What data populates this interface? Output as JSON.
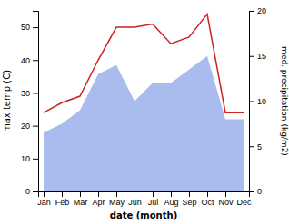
{
  "chart_data": {
    "type": "line",
    "categories": [
      "Jan",
      "Feb",
      "Mar",
      "Apr",
      "May",
      "Jun",
      "Jul",
      "Aug",
      "Sep",
      "Oct",
      "Nov",
      "Dec"
    ],
    "xlabel": "date (month)",
    "ylabel": "max temp (C)",
    "y2label": "med. precipitation (kg/m2)",
    "ylim": [
      0,
      55
    ],
    "yticks": [
      0,
      10,
      20,
      30,
      40,
      50
    ],
    "y2lim": [
      0,
      20
    ],
    "y2ticks": [
      0,
      5,
      10,
      15,
      20
    ],
    "grid": false,
    "series": [
      {
        "type": "area",
        "color": "#aabbee",
        "axis": "y2",
        "values": [
          6.5,
          7.5,
          9,
          13,
          14,
          10,
          12,
          12,
          13.5,
          15,
          8,
          8
        ]
      },
      {
        "type": "line",
        "color": "#cc2222",
        "values": [
          24,
          27,
          29,
          40,
          50,
          50,
          51,
          45,
          47,
          54,
          24,
          24
        ]
      }
    ]
  }
}
